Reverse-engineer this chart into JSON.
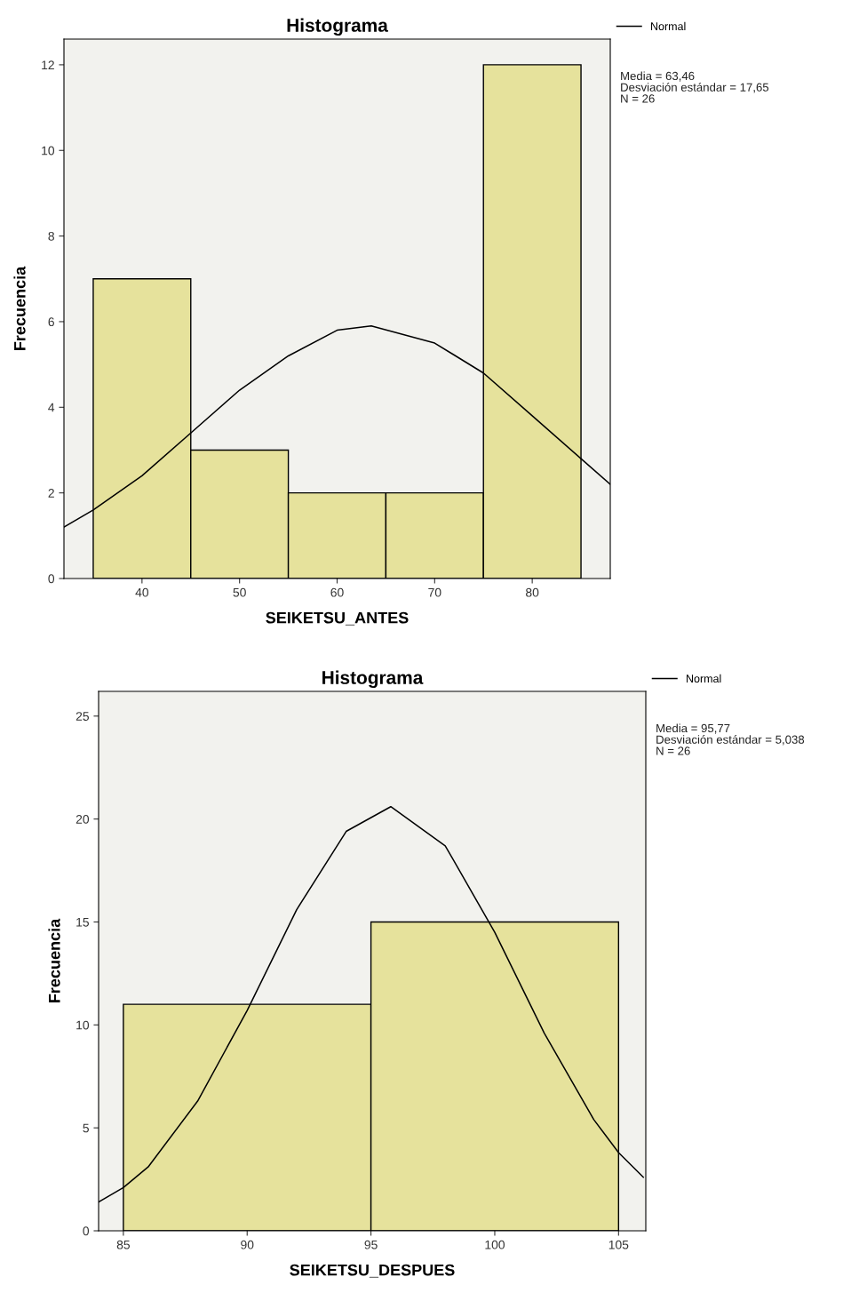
{
  "chart_data": [
    {
      "type": "histogram",
      "title": "Histograma",
      "xlabel": "SEIKETSU_ANTES",
      "ylabel": "Frecuencia",
      "bins": [
        35,
        45,
        55,
        65,
        75,
        85
      ],
      "values": [
        7,
        3,
        2,
        2,
        12
      ],
      "color": "#e6e29c",
      "series": [
        {
          "name": "Normal",
          "type": "line",
          "color": "#000000",
          "x": [
            32,
            35,
            40,
            45,
            50,
            55,
            60,
            63.5,
            70,
            75,
            80,
            85,
            88
          ],
          "values": [
            1.2,
            1.6,
            2.4,
            3.4,
            4.4,
            5.2,
            5.8,
            5.9,
            5.5,
            4.8,
            3.8,
            2.8,
            2.2
          ]
        }
      ],
      "xlim": [
        32,
        88
      ],
      "xticks": [
        40,
        50,
        60,
        70,
        80
      ],
      "ylim": [
        0,
        12.6
      ],
      "yticks": [
        0,
        2,
        4,
        6,
        8,
        10,
        12
      ],
      "legend": "top right",
      "grid": false,
      "annotations": [
        "Media = 63,46",
        "Desviación estándar = 17,65",
        "N = 26"
      ]
    },
    {
      "type": "histogram",
      "title": "Histograma",
      "xlabel": "SEIKETSU_DESPUES",
      "ylabel": "Frecuencia",
      "bins": [
        85,
        95,
        105
      ],
      "values": [
        11,
        15
      ],
      "color": "#e6e29c",
      "series": [
        {
          "name": "Normal",
          "type": "line",
          "color": "#000000",
          "x": [
            84,
            85,
            86,
            88,
            90,
            92,
            94,
            95.8,
            98,
            100,
            102,
            104,
            105,
            106
          ],
          "values": [
            1.4,
            2.1,
            3.1,
            6.3,
            10.7,
            15.6,
            19.4,
            20.6,
            18.7,
            14.5,
            9.6,
            5.4,
            3.8,
            2.6
          ]
        }
      ],
      "xlim": [
        84,
        106.1
      ],
      "xticks": [
        85,
        90,
        95,
        100,
        105
      ],
      "ylim": [
        0,
        26.2
      ],
      "yticks": [
        0,
        5,
        10,
        15,
        20,
        25
      ],
      "legend": "top right",
      "grid": false,
      "annotations": [
        "Media = 95,77",
        "Desviación estándar = 5,038",
        "N = 26"
      ]
    }
  ]
}
